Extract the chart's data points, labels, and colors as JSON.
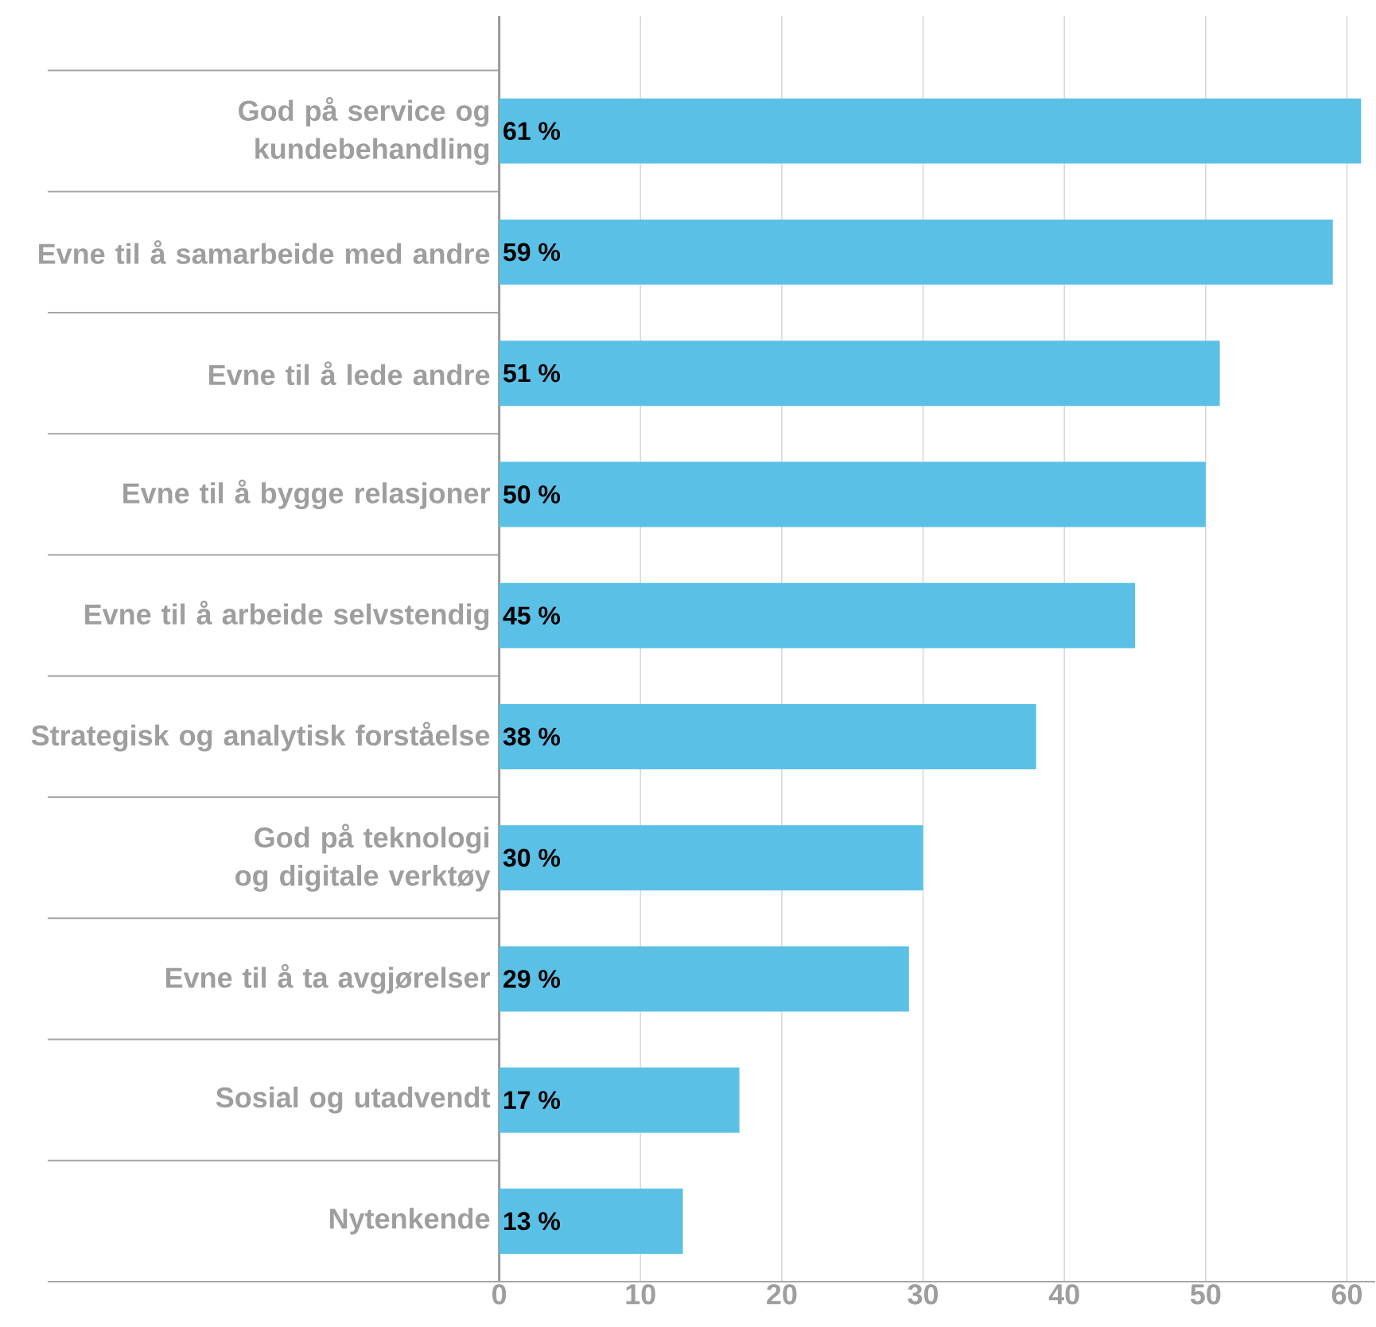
{
  "chart_data": {
    "type": "bar",
    "orientation": "horizontal",
    "categories": [
      "God på service og kundebehandling",
      "Evne til å samarbeide med andre",
      "Evne til å lede andre",
      "Evne til å bygge relasjoner",
      "Evne til å arbeide selvstendig",
      "Strategisk og analytisk forståelse",
      "God på teknologi og digitale verktøy",
      "Evne til å ta avgjørelser",
      "Sosial og utadvendt",
      "Nytenkende"
    ],
    "values": [
      61,
      59,
      51,
      50,
      45,
      38,
      30,
      29,
      17,
      13
    ],
    "value_labels": [
      "61 %",
      "59 %",
      "51 %",
      "50 %",
      "45 %",
      "38 %",
      "30 %",
      "29 %",
      "17 %",
      "13 %"
    ],
    "color": "#5bc0e6",
    "xlim": [
      0,
      62
    ],
    "xticks": [
      0,
      10,
      20,
      30,
      40,
      50,
      60
    ],
    "grid": "x"
  }
}
